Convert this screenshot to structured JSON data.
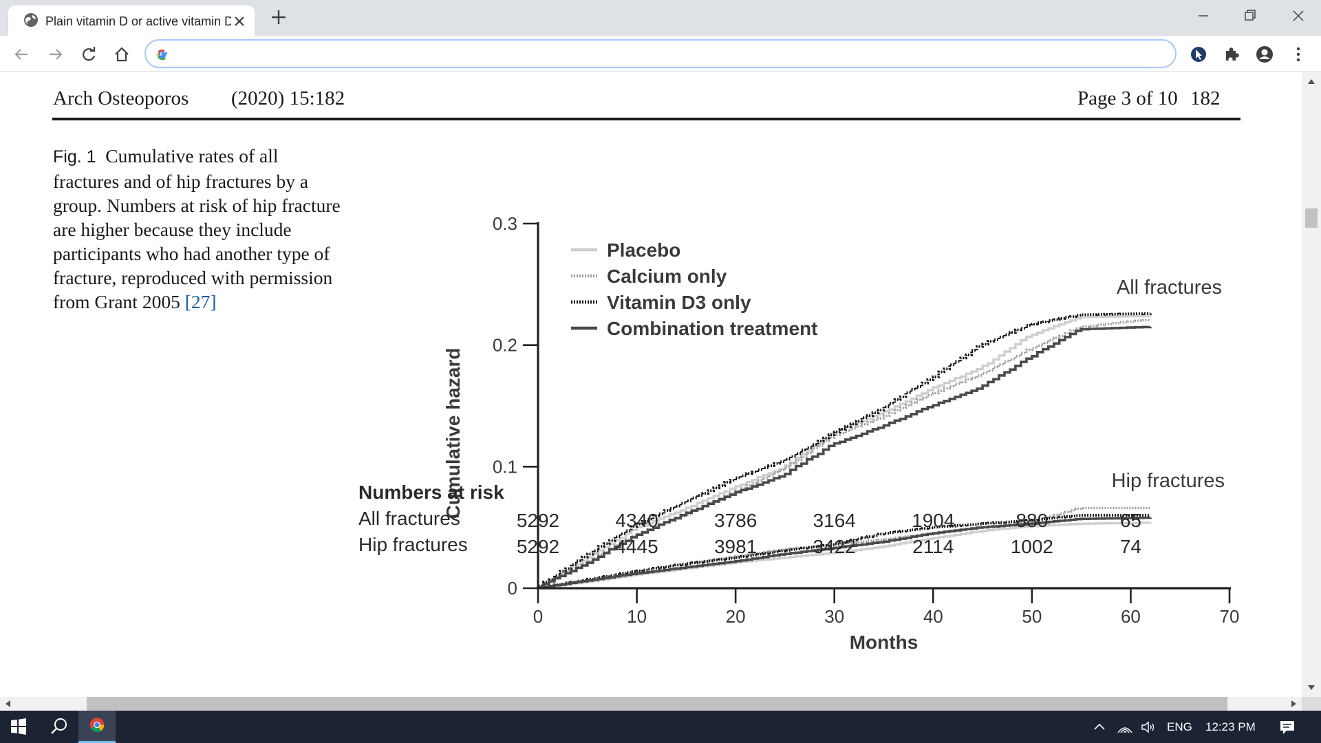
{
  "browser": {
    "tab_title": "Plain vitamin D or active vitamin D in the treatment...",
    "omnibox_value": ""
  },
  "page": {
    "journal": "Arch Osteoporos",
    "volume": "(2020) 15:182",
    "page_info": "Page 3 of 10",
    "page_number": "182"
  },
  "caption": {
    "label": "Fig. 1",
    "text": "Cumulative rates of all fractures and of hip fractures by a group. Numbers at risk of hip fracture are higher because they include participants who had another type of fracture, reproduced with permission from Grant 2005",
    "ref": "[27]"
  },
  "chart_data": {
    "type": "line",
    "title": "",
    "xlabel": "Months",
    "ylabel": "Cumulative hazard",
    "xlim": [
      0,
      70
    ],
    "ylim": [
      0,
      0.3
    ],
    "xticks": [
      0,
      10,
      20,
      30,
      40,
      50,
      60,
      70
    ],
    "yticks": [
      0,
      0.1,
      0.2,
      0.3
    ],
    "ytick_labels": [
      "0",
      "0.1",
      "0.2",
      "0.3"
    ],
    "legend_position": "top-left",
    "annotations": [
      "All fractures",
      "Hip fractures"
    ],
    "series": [
      {
        "name": "Placebo",
        "group": "All fractures",
        "style": "solid-light",
        "color": "#c8c8c8",
        "x": [
          0,
          5,
          10,
          15,
          20,
          25,
          30,
          35,
          40,
          45,
          50,
          55,
          62
        ],
        "y": [
          0,
          0.024,
          0.049,
          0.065,
          0.083,
          0.099,
          0.128,
          0.144,
          0.164,
          0.181,
          0.208,
          0.223,
          0.224
        ]
      },
      {
        "name": "Calcium only",
        "group": "All fractures",
        "style": "dotted-light",
        "color": "#a8a8a8",
        "x": [
          0,
          5,
          10,
          15,
          20,
          25,
          30,
          35,
          40,
          45,
          50,
          55,
          62
        ],
        "y": [
          0,
          0.021,
          0.044,
          0.06,
          0.079,
          0.098,
          0.125,
          0.141,
          0.16,
          0.176,
          0.197,
          0.215,
          0.221
        ]
      },
      {
        "name": "Vitamin D3 only",
        "group": "All fractures",
        "style": "dotted-dark",
        "color": "#1a1a1a",
        "x": [
          0,
          5,
          10,
          15,
          20,
          25,
          30,
          35,
          40,
          45,
          50,
          55,
          62
        ],
        "y": [
          0,
          0.027,
          0.052,
          0.071,
          0.09,
          0.105,
          0.127,
          0.148,
          0.173,
          0.2,
          0.217,
          0.225,
          0.226
        ]
      },
      {
        "name": "Combination treatment",
        "group": "All fractures",
        "style": "solid-dark",
        "color": "#555555",
        "x": [
          0,
          5,
          10,
          15,
          20,
          25,
          30,
          35,
          40,
          45,
          50,
          55,
          62
        ],
        "y": [
          0,
          0.02,
          0.043,
          0.061,
          0.078,
          0.093,
          0.118,
          0.133,
          0.15,
          0.165,
          0.19,
          0.213,
          0.215
        ]
      },
      {
        "name": "Placebo",
        "group": "Hip fractures",
        "style": "solid-light",
        "color": "#c8c8c8",
        "x": [
          0,
          5,
          10,
          15,
          20,
          25,
          30,
          35,
          40,
          45,
          50,
          55,
          62
        ],
        "y": [
          0,
          0.005,
          0.011,
          0.016,
          0.021,
          0.025,
          0.029,
          0.034,
          0.041,
          0.047,
          0.051,
          0.053,
          0.054
        ]
      },
      {
        "name": "Calcium only",
        "group": "Hip fractures",
        "style": "dotted-light",
        "color": "#a8a8a8",
        "x": [
          0,
          5,
          10,
          15,
          20,
          25,
          30,
          35,
          40,
          45,
          50,
          55,
          62
        ],
        "y": [
          0,
          0.007,
          0.014,
          0.02,
          0.026,
          0.032,
          0.036,
          0.04,
          0.045,
          0.05,
          0.055,
          0.066,
          0.066
        ]
      },
      {
        "name": "Vitamin D3 only",
        "group": "Hip fractures",
        "style": "dotted-dark",
        "color": "#1a1a1a",
        "x": [
          0,
          5,
          10,
          15,
          20,
          25,
          30,
          35,
          40,
          45,
          50,
          55,
          62
        ],
        "y": [
          0,
          0.007,
          0.014,
          0.02,
          0.025,
          0.031,
          0.036,
          0.045,
          0.05,
          0.053,
          0.056,
          0.06,
          0.06
        ]
      },
      {
        "name": "Combination treatment",
        "group": "Hip fractures",
        "style": "solid-dark",
        "color": "#555555",
        "x": [
          0,
          5,
          10,
          15,
          20,
          25,
          30,
          35,
          40,
          45,
          50,
          55,
          62
        ],
        "y": [
          0,
          0.006,
          0.012,
          0.017,
          0.022,
          0.028,
          0.033,
          0.038,
          0.045,
          0.05,
          0.053,
          0.057,
          0.058
        ]
      }
    ]
  },
  "numbers_at_risk": {
    "title": "Numbers at risk",
    "months": [
      0,
      10,
      20,
      30,
      40,
      50,
      60
    ],
    "rows": [
      {
        "label": "All fractures",
        "values": [
          "5292",
          "4340",
          "3786",
          "3164",
          "1904",
          "880",
          "65"
        ]
      },
      {
        "label": "Hip fractures",
        "values": [
          "5292",
          "4445",
          "3981",
          "3422",
          "2114",
          "1002",
          "74"
        ]
      }
    ]
  },
  "taskbar": {
    "language": "ENG",
    "clock": "12:23 PM"
  }
}
